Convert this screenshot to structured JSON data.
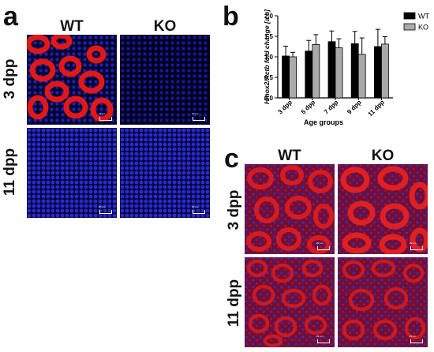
{
  "figure": {
    "panel_a": {
      "label": "a",
      "columns": [
        "WT",
        "KO"
      ],
      "rows": [
        "3 dpp",
        "11 dpp"
      ],
      "images": [
        {
          "name": "micrograph-a-wt-3dpp",
          "stain": "red-heavy"
        },
        {
          "name": "micrograph-a-ko-3dpp",
          "stain": "blue"
        },
        {
          "name": "micrograph-a-wt-11dpp",
          "stain": "blue"
        },
        {
          "name": "micrograph-a-ko-11dpp",
          "stain": "blue"
        }
      ],
      "scalebar_text": "20 μm"
    },
    "panel_b": {
      "label": "b"
    },
    "panel_c": {
      "label": "c",
      "columns": [
        "WT",
        "KO"
      ],
      "rows": [
        "3 dpp",
        "11 dpp"
      ],
      "images": [
        {
          "name": "micrograph-c-wt-3dpp",
          "stain": "red"
        },
        {
          "name": "micrograph-c-ko-3dpp",
          "stain": "red"
        },
        {
          "name": "micrograph-c-wt-11dpp",
          "stain": "red"
        },
        {
          "name": "micrograph-c-ko-11dpp",
          "stain": "red"
        }
      ],
      "scalebar_text": "20 μm"
    }
  },
  "colors": {
    "wt_bar": "#000000",
    "ko_bar": "#aaaaaa",
    "stain_blue": "#1a1aa0",
    "stain_red": "#d01010"
  },
  "chart_data": {
    "type": "bar",
    "ylabel": "Hmox2/Actb fold change [a.u]",
    "xlabel": "Age groups",
    "categories": [
      "3 dpp",
      "5 dpp",
      "7 dpp",
      "9 dpp",
      "11 dpp"
    ],
    "ylim": [
      0.0,
      2.0
    ],
    "yticks": [
      "0.0",
      "0.5",
      "1.0",
      "1.5",
      "2.0"
    ],
    "legend": "top-right",
    "series": [
      {
        "name": "WT",
        "values": [
          1.02,
          1.14,
          1.37,
          1.32,
          1.25
        ],
        "errors": [
          0.24,
          0.26,
          0.26,
          0.3,
          0.42
        ]
      },
      {
        "name": "KO",
        "values": [
          1.0,
          1.3,
          1.22,
          1.06,
          1.31
        ],
        "errors": [
          0.11,
          0.24,
          0.22,
          0.4,
          0.18
        ]
      }
    ]
  }
}
